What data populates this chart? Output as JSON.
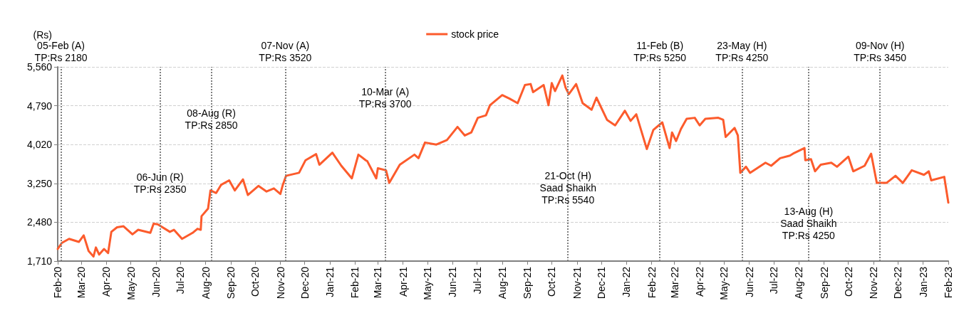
{
  "chart_data": {
    "type": "line",
    "ylabel": "(Rs)",
    "series": [
      {
        "name": "stock price",
        "color": "#fc5b2c",
        "x": [
          "2020-02-01",
          "2020-02-06",
          "2020-02-15",
          "2020-02-27",
          "2020-03-04",
          "2020-03-10",
          "2020-03-16",
          "2020-03-19",
          "2020-03-23",
          "2020-03-29",
          "2020-04-03",
          "2020-04-07",
          "2020-04-14",
          "2020-04-22",
          "2020-05-03",
          "2020-05-10",
          "2020-05-25",
          "2020-05-29",
          "2020-06-03",
          "2020-06-18",
          "2020-06-23",
          "2020-07-03",
          "2020-07-16",
          "2020-07-22",
          "2020-07-26",
          "2020-07-27",
          "2020-08-04",
          "2020-08-07",
          "2020-08-14",
          "2020-08-20",
          "2020-08-30",
          "2020-09-06",
          "2020-09-16",
          "2020-09-22",
          "2020-10-05",
          "2020-10-15",
          "2020-10-24",
          "2020-11-01",
          "2020-11-04",
          "2020-11-08",
          "2020-11-24",
          "2020-12-02",
          "2020-12-15",
          "2020-12-19",
          "2021-01-04",
          "2021-01-15",
          "2021-01-28",
          "2021-02-05",
          "2021-02-14",
          "2021-02-16",
          "2021-02-27",
          "2021-03-01",
          "2021-03-11",
          "2021-03-15",
          "2021-03-28",
          "2021-04-15",
          "2021-04-20",
          "2021-04-28",
          "2021-05-12",
          "2021-05-25",
          "2021-06-07",
          "2021-06-16",
          "2021-06-24",
          "2021-07-02",
          "2021-07-12",
          "2021-07-17",
          "2021-08-01",
          "2021-08-10",
          "2021-08-20",
          "2021-08-29",
          "2021-09-05",
          "2021-09-08",
          "2021-09-21",
          "2021-09-27",
          "2021-10-01",
          "2021-10-05",
          "2021-10-14",
          "2021-10-18",
          "2021-10-22",
          "2021-10-31",
          "2021-11-08",
          "2021-11-19",
          "2021-11-25",
          "2021-12-08",
          "2021-12-18",
          "2021-12-30",
          "2022-01-06",
          "2022-01-13",
          "2022-01-26",
          "2022-02-03",
          "2022-02-14",
          "2022-02-23",
          "2022-02-26",
          "2022-03-03",
          "2022-03-09",
          "2022-03-16",
          "2022-03-26",
          "2022-04-01",
          "2022-04-08",
          "2022-04-24",
          "2022-04-30",
          "2022-05-03",
          "2022-05-14",
          "2022-05-18",
          "2022-05-21",
          "2022-05-28",
          "2022-06-02",
          "2022-06-21",
          "2022-06-28",
          "2022-07-09",
          "2022-07-21",
          "2022-07-25",
          "2022-08-08",
          "2022-08-09",
          "2022-08-16",
          "2022-08-21",
          "2022-08-28",
          "2022-09-10",
          "2022-09-17",
          "2022-10-01",
          "2022-10-07",
          "2022-10-21",
          "2022-10-29",
          "2022-11-05",
          "2022-11-17",
          "2022-11-28",
          "2022-12-07",
          "2022-12-18",
          "2023-01-02",
          "2023-01-08",
          "2023-01-11",
          "2023-01-27",
          "2023-02-01"
        ],
        "values": [
          1950,
          2070,
          2150,
          2090,
          2220,
          1910,
          1800,
          1980,
          1840,
          1950,
          1870,
          2290,
          2380,
          2400,
          2240,
          2330,
          2270,
          2450,
          2440,
          2290,
          2330,
          2150,
          2270,
          2350,
          2330,
          2600,
          2750,
          3110,
          3060,
          3220,
          3310,
          3110,
          3330,
          3020,
          3200,
          3090,
          3150,
          3040,
          3220,
          3400,
          3460,
          3710,
          3830,
          3620,
          3860,
          3600,
          3350,
          3820,
          3710,
          3690,
          3350,
          3550,
          3510,
          3260,
          3620,
          3820,
          3750,
          4060,
          4020,
          4110,
          4370,
          4200,
          4260,
          4550,
          4600,
          4800,
          5000,
          4930,
          4840,
          5200,
          5220,
          5060,
          5200,
          4800,
          5240,
          5080,
          5390,
          5150,
          5020,
          5220,
          4840,
          4710,
          4950,
          4510,
          4400,
          4690,
          4490,
          4620,
          3930,
          4310,
          4460,
          3950,
          4260,
          4090,
          4330,
          4530,
          4550,
          4400,
          4530,
          4550,
          4510,
          4170,
          4350,
          4200,
          3460,
          3580,
          3460,
          3660,
          3600,
          3750,
          3800,
          3840,
          3950,
          3710,
          3730,
          3490,
          3620,
          3660,
          3580,
          3780,
          3490,
          3600,
          3840,
          3260,
          3260,
          3400,
          3260,
          3510,
          3420,
          3490,
          3310,
          3380,
          2870
        ]
      }
    ],
    "xlim": [
      "2020-02-01",
      "2023-02-01"
    ],
    "xticks": [
      {
        "value": "2020-02-01",
        "label": "Feb-20"
      },
      {
        "value": "2020-03-01",
        "label": "Mar-20"
      },
      {
        "value": "2020-04-01",
        "label": "Apr-20"
      },
      {
        "value": "2020-05-01",
        "label": "May-20"
      },
      {
        "value": "2020-06-01",
        "label": "Jun-20"
      },
      {
        "value": "2020-07-01",
        "label": "Jul-20"
      },
      {
        "value": "2020-08-01",
        "label": "Aug-20"
      },
      {
        "value": "2020-09-01",
        "label": "Sep-20"
      },
      {
        "value": "2020-10-01",
        "label": "Oct-20"
      },
      {
        "value": "2020-11-01",
        "label": "Nov-20"
      },
      {
        "value": "2020-12-01",
        "label": "Dec-20"
      },
      {
        "value": "2021-01-01",
        "label": "Jan-21"
      },
      {
        "value": "2021-02-01",
        "label": "Feb-21"
      },
      {
        "value": "2021-03-01",
        "label": "Mar-21"
      },
      {
        "value": "2021-04-01",
        "label": "Apr-21"
      },
      {
        "value": "2021-05-01",
        "label": "May-21"
      },
      {
        "value": "2021-06-01",
        "label": "Jun-21"
      },
      {
        "value": "2021-07-01",
        "label": "Jul-21"
      },
      {
        "value": "2021-08-01",
        "label": "Aug-21"
      },
      {
        "value": "2021-09-01",
        "label": "Sep-21"
      },
      {
        "value": "2021-10-01",
        "label": "Oct-21"
      },
      {
        "value": "2021-11-01",
        "label": "Nov-21"
      },
      {
        "value": "2021-12-01",
        "label": "Dec-21"
      },
      {
        "value": "2022-01-01",
        "label": "Jan-22"
      },
      {
        "value": "2022-02-01",
        "label": "Feb-22"
      },
      {
        "value": "2022-03-01",
        "label": "Mar-22"
      },
      {
        "value": "2022-04-01",
        "label": "Apr-22"
      },
      {
        "value": "2022-05-01",
        "label": "May-22"
      },
      {
        "value": "2022-06-01",
        "label": "Jun-22"
      },
      {
        "value": "2022-07-01",
        "label": "Jul-22"
      },
      {
        "value": "2022-08-01",
        "label": "Aug-22"
      },
      {
        "value": "2022-09-01",
        "label": "Sep-22"
      },
      {
        "value": "2022-10-01",
        "label": "Oct-22"
      },
      {
        "value": "2022-11-01",
        "label": "Nov-22"
      },
      {
        "value": "2022-12-01",
        "label": "Dec-22"
      },
      {
        "value": "2023-01-01",
        "label": "Jan-23"
      },
      {
        "value": "2023-02-01",
        "label": "Feb-23"
      }
    ],
    "ylim": [
      1710,
      5560
    ],
    "yticks": [
      {
        "value": 1710,
        "label": "1,710"
      },
      {
        "value": 2480,
        "label": "2,480"
      },
      {
        "value": 3250,
        "label": "3,250"
      },
      {
        "value": 4020,
        "label": "4,020"
      },
      {
        "value": 4790,
        "label": "4,790"
      },
      {
        "value": 5560,
        "label": "5,560"
      }
    ],
    "grid": "y",
    "legend": "top",
    "marker": "none",
    "line_style": "solid",
    "ref_lines": [
      {
        "axis": "x",
        "value": "2020-02-05",
        "label": "05-Feb (A)\nTP:Rs 2180",
        "color": "#808080",
        "line_style": "dotted"
      },
      {
        "axis": "x",
        "value": "2020-06-06",
        "label": "06-Jun (R)\nTP:Rs 2350",
        "color": "#808080",
        "line_style": "dotted"
      },
      {
        "axis": "x",
        "value": "2020-08-08",
        "label": "08-Aug (R)\nTP:Rs 2850",
        "color": "#808080",
        "line_style": "dotted"
      },
      {
        "axis": "x",
        "value": "2020-11-07",
        "label": "07-Nov (A)\nTP:Rs 3520",
        "color": "#808080",
        "line_style": "dotted"
      },
      {
        "axis": "x",
        "value": "2021-03-10",
        "label": "10-Mar (A)\nTP:Rs 3700",
        "color": "#808080",
        "line_style": "dotted"
      },
      {
        "axis": "x",
        "value": "2021-10-21",
        "label": "21-Oct (H)\nSaad Shaikh\nTP:Rs 5540",
        "color": "#808080",
        "line_style": "dotted"
      },
      {
        "axis": "x",
        "value": "2022-02-11",
        "label": "11-Feb (B)\nTP:Rs 5250",
        "color": "#808080",
        "line_style": "dotted"
      },
      {
        "axis": "x",
        "value": "2022-05-23",
        "label": "23-May (H)\nTP:Rs 4250",
        "color": "#808080",
        "line_style": "dotted"
      },
      {
        "axis": "x",
        "value": "2022-08-13",
        "label": "13-Aug (H)\nSaad Shaikh\nTP:Rs 4250",
        "color": "#808080",
        "line_style": "dotted"
      },
      {
        "axis": "x",
        "value": "2022-11-09",
        "label": "09-Nov (H)\nTP:Rs 3450",
        "color": "#808080",
        "line_style": "dotted"
      }
    ]
  }
}
